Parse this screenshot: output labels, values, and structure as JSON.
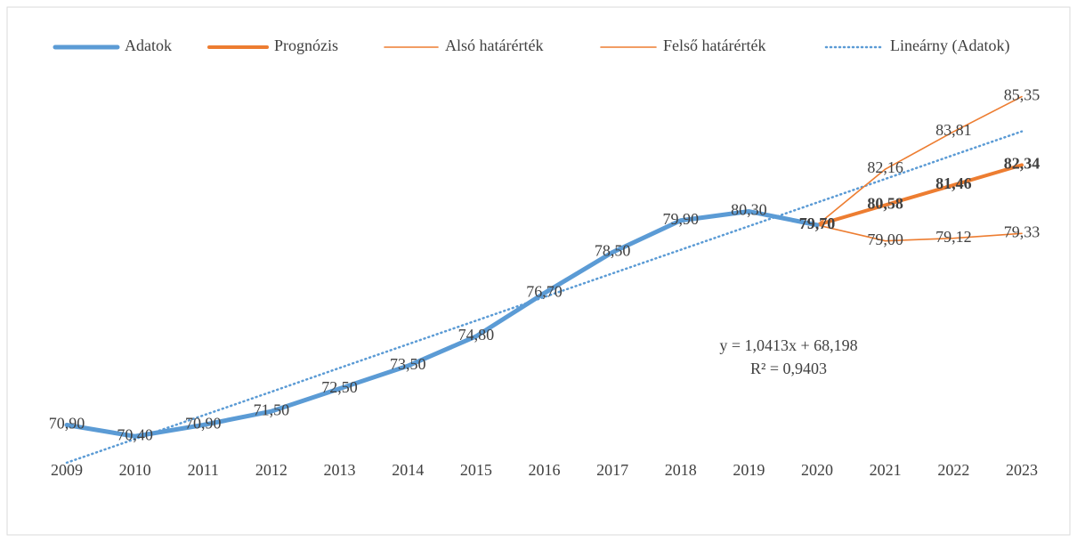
{
  "chart_data": {
    "type": "line",
    "categories": [
      "2009",
      "2010",
      "2011",
      "2012",
      "2013",
      "2014",
      "2015",
      "2016",
      "2017",
      "2018",
      "2019",
      "2020",
      "2021",
      "2022",
      "2023"
    ],
    "ylim": [
      69,
      86
    ],
    "series": [
      {
        "name": "Adatok",
        "color": "#5b9bd5",
        "values": [
          70.9,
          70.4,
          70.9,
          71.5,
          72.5,
          73.5,
          74.8,
          76.7,
          78.5,
          79.9,
          80.3,
          79.7,
          null,
          null,
          null
        ],
        "value_labels": [
          "70,90",
          "70,40",
          "70,90",
          "71,50",
          "72,50",
          "73,50",
          "74,80",
          "76,70",
          "78,50",
          "79,90",
          "80,30",
          "79,70",
          null,
          null,
          null
        ]
      },
      {
        "name": "Prognózis",
        "color": "#ed7d31",
        "values": [
          null,
          null,
          null,
          null,
          null,
          null,
          null,
          null,
          null,
          null,
          null,
          79.7,
          80.58,
          81.46,
          82.34
        ],
        "value_labels": [
          null,
          null,
          null,
          null,
          null,
          null,
          null,
          null,
          null,
          null,
          null,
          "79,70",
          "80,58",
          "81,46",
          "82,34"
        ]
      },
      {
        "name": "Alsó határérték",
        "color": "#ed7d31",
        "values": [
          null,
          null,
          null,
          null,
          null,
          null,
          null,
          null,
          null,
          null,
          null,
          79.7,
          79.0,
          79.12,
          79.33
        ],
        "value_labels": [
          null,
          null,
          null,
          null,
          null,
          null,
          null,
          null,
          null,
          null,
          null,
          null,
          "79,00",
          "79,12",
          "79,33"
        ]
      },
      {
        "name": "Felső határérték",
        "color": "#ed7d31",
        "values": [
          null,
          null,
          null,
          null,
          null,
          null,
          null,
          null,
          null,
          null,
          null,
          79.7,
          82.16,
          83.81,
          85.35
        ],
        "value_labels": [
          null,
          null,
          null,
          null,
          null,
          null,
          null,
          null,
          null,
          null,
          null,
          null,
          "82,16",
          "83,81",
          "85,35"
        ]
      },
      {
        "name": "Lineárny (Adatok)",
        "color": "#5b9bd5",
        "line_style": "dotted",
        "values": [
          69.24,
          70.28,
          71.32,
          72.36,
          73.41,
          74.45,
          75.49,
          76.53,
          77.57,
          78.61,
          79.65,
          80.69,
          81.73,
          82.78,
          83.82
        ]
      }
    ],
    "annotations": [
      "y = 1,0413x + 68,198",
      "R² = 0,9403"
    ],
    "legend": "top"
  }
}
